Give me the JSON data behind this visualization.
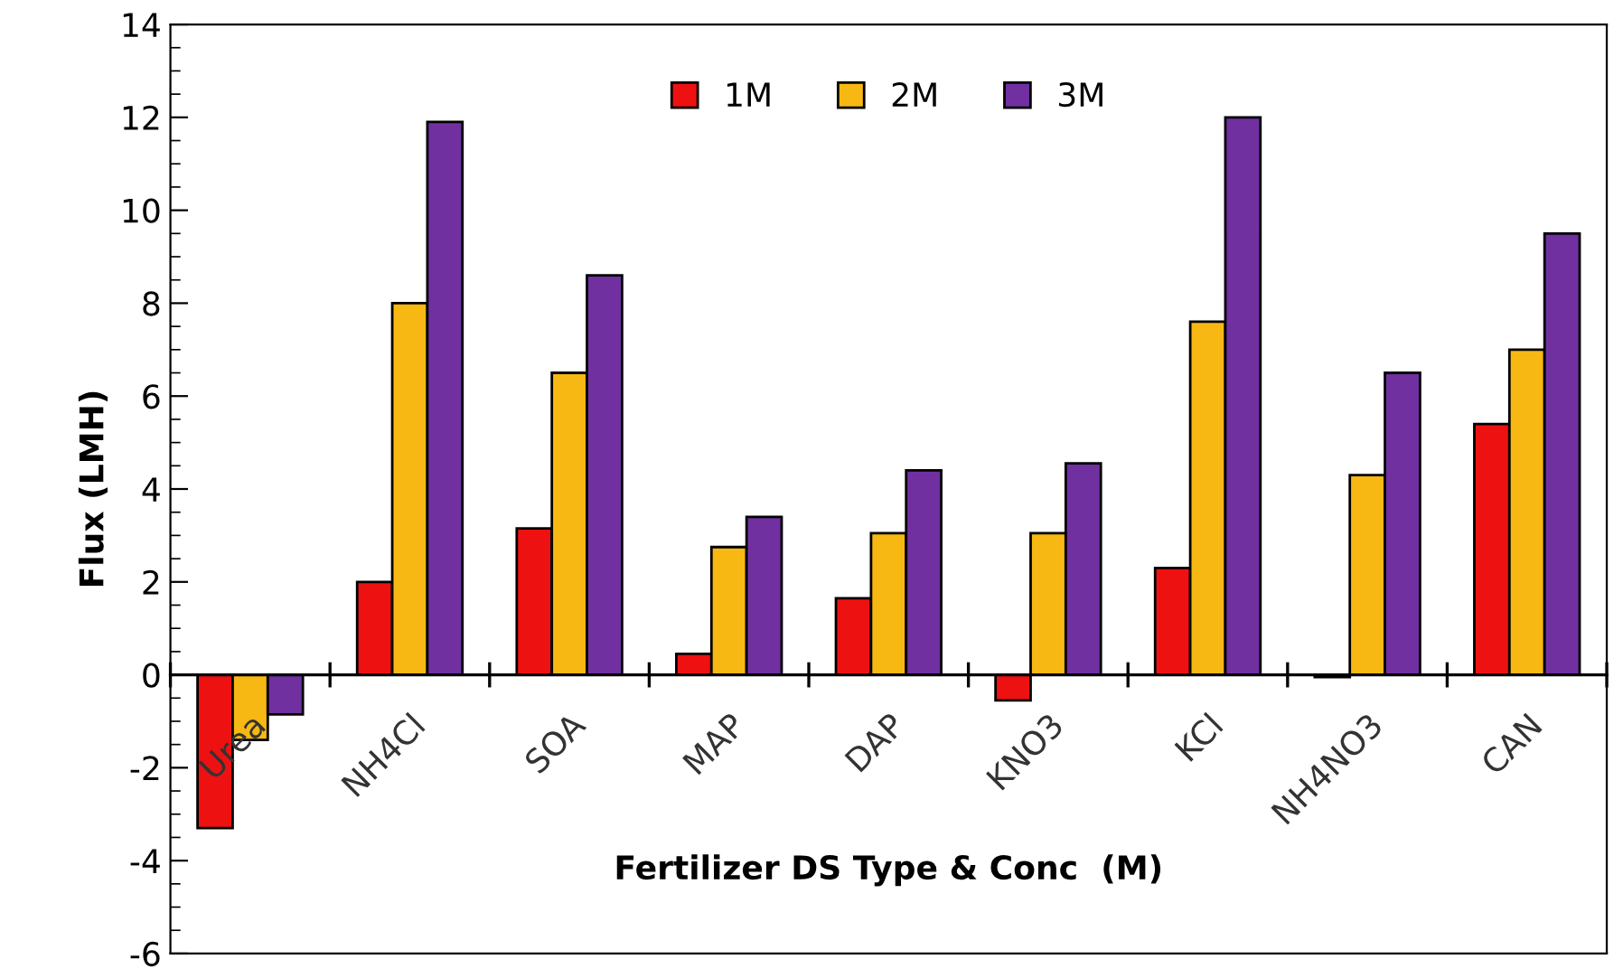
{
  "chart_data": {
    "type": "bar",
    "xlabel": "Fertilizer DS Type & Conc  (M)",
    "ylabel": "Flux (LMH)",
    "categories": [
      "Urea",
      "NH4Cl",
      "SOA",
      "MAP",
      "DAP",
      "KNO3",
      "KCl",
      "NH4NO3",
      "CAN"
    ],
    "series": [
      {
        "name": "1M",
        "color": "#ee1111",
        "values": [
          -3.3,
          2.0,
          3.15,
          0.45,
          1.65,
          -0.55,
          2.3,
          -0.05,
          5.4
        ]
      },
      {
        "name": "2M",
        "color": "#f7b813",
        "values": [
          -1.4,
          8.0,
          6.5,
          2.75,
          3.05,
          3.05,
          7.6,
          4.3,
          7.0
        ]
      },
      {
        "name": "3M",
        "color": "#7030a0",
        "values": [
          -0.85,
          11.9,
          8.6,
          3.4,
          4.4,
          4.55,
          12.0,
          6.5,
          9.5
        ]
      }
    ],
    "ylim": [
      -6,
      14
    ],
    "yticks": [
      -6,
      -4,
      -2,
      0,
      2,
      4,
      6,
      8,
      10,
      12,
      14
    ],
    "grid": false,
    "legend": "top"
  }
}
